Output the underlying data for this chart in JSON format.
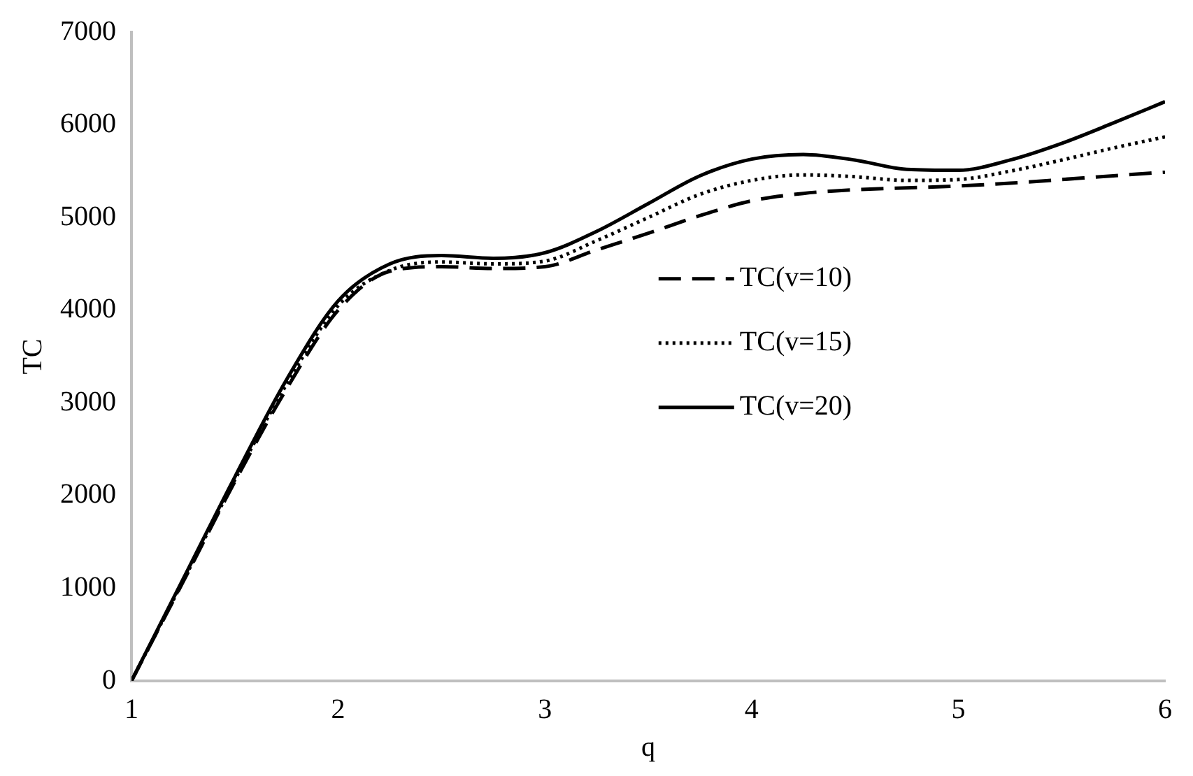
{
  "chart_data": {
    "type": "line",
    "xlabel": "q",
    "ylabel": "TC",
    "xlim": [
      1,
      6
    ],
    "xticks": [
      1,
      2,
      3,
      4,
      5,
      6
    ],
    "ylim": [
      0,
      7000
    ],
    "yticks": [
      0,
      1000,
      2000,
      3000,
      4000,
      5000,
      6000,
      7000
    ],
    "grid": false,
    "legend": "right",
    "marker": "none",
    "x": [
      1,
      1.25,
      1.5,
      1.75,
      2,
      2.25,
      2.5,
      2.75,
      3,
      3.25,
      3.5,
      3.75,
      4,
      4.25,
      4.5,
      4.75,
      5,
      5.25,
      5.5,
      5.75,
      6
    ],
    "series": [
      {
        "name": "TC(v=10)",
        "color": "#000000",
        "line_style": "dashed",
        "values": [
          0,
          1070,
          2150,
          3150,
          4000,
          4420,
          4470,
          4450,
          4470,
          4650,
          4830,
          5020,
          5180,
          5260,
          5300,
          5320,
          5340,
          5370,
          5410,
          5450,
          5490
        ]
      },
      {
        "name": "TC(v=15)",
        "color": "#000000",
        "line_style": "dotted",
        "values": [
          0,
          1080,
          2170,
          3200,
          4050,
          4430,
          4520,
          4500,
          4530,
          4750,
          5000,
          5250,
          5400,
          5460,
          5440,
          5400,
          5410,
          5500,
          5620,
          5750,
          5870
        ]
      },
      {
        "name": "TC(v=20)",
        "color": "#000000",
        "line_style": "solid",
        "values": [
          0,
          1100,
          2200,
          3250,
          4100,
          4500,
          4590,
          4560,
          4620,
          4850,
          5150,
          5450,
          5630,
          5680,
          5620,
          5520,
          5510,
          5620,
          5800,
          6020,
          6250
        ]
      }
    ]
  }
}
